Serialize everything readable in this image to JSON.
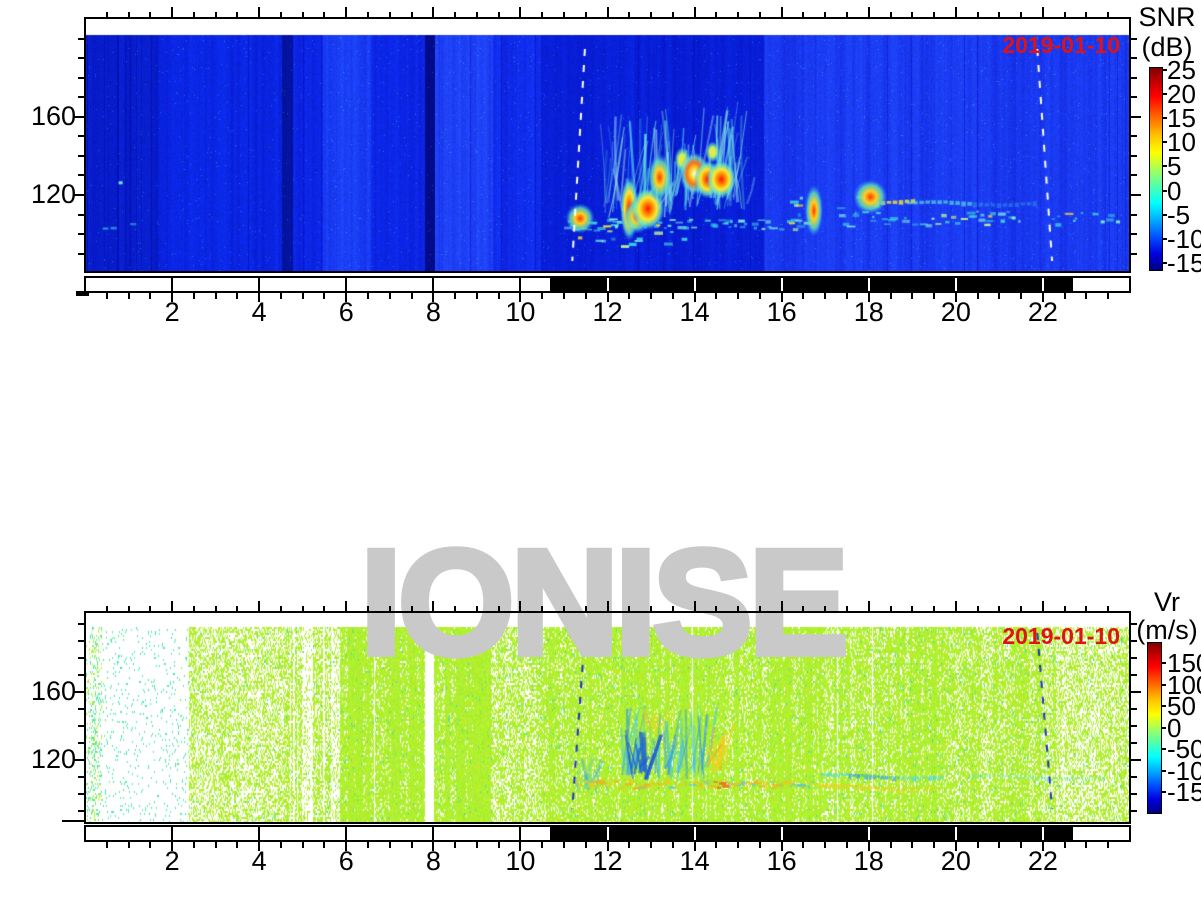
{
  "watermark": "IONISE",
  "panels": [
    {
      "id": "snr",
      "date_label": "2019-01-10",
      "colorbar": {
        "title": "SNR",
        "units": "(dB)",
        "tick_labels": [
          "25",
          "20",
          "15",
          "10",
          "5",
          "0",
          "-5",
          "-10",
          "-15"
        ]
      },
      "y_tick_labels": [
        "160",
        "120"
      ],
      "x_tick_labels": [
        "2",
        "4",
        "6",
        "8",
        "10",
        "12",
        "14",
        "16",
        "18",
        "20",
        "22"
      ]
    },
    {
      "id": "vr",
      "date_label": "2019-01-10",
      "colorbar": {
        "title": "Vr",
        "units": "(m/s)",
        "tick_labels": [
          "150",
          "100",
          "50",
          "0",
          "-50",
          "-100",
          "-150"
        ]
      },
      "y_tick_labels": [
        "160",
        "120"
      ],
      "x_tick_labels": [
        "2",
        "4",
        "6",
        "8",
        "10",
        "12",
        "14",
        "16",
        "18",
        "20",
        "22"
      ]
    }
  ],
  "chart_data": [
    {
      "id": "snr",
      "type": "heatmap",
      "quantity": "signal-to-noise ratio",
      "date": "2019-01-10",
      "x_axis": {
        "range_hours": [
          0,
          24
        ],
        "major_tick_hours": [
          2,
          4,
          6,
          8,
          10,
          12,
          14,
          16,
          18,
          20,
          22
        ],
        "minor_step_hours": 0.5
      },
      "y_axis": {
        "labeled_ticks_km": [
          160,
          120
        ],
        "minor_step_km": 10,
        "range_km": [
          82,
          210
        ],
        "data_top_km": 200
      },
      "colorbar": {
        "title": "SNR",
        "units": "dB",
        "tick_values": [
          25,
          20,
          15,
          10,
          5,
          0,
          -5,
          -10,
          -15
        ],
        "colormap": "jet"
      },
      "night_shading_hours": [
        10.68,
        22.69
      ],
      "terminator_lines": [
        {
          "hour_top": 11.48,
          "hour_bottom": 11.19,
          "style": "dashed",
          "color": "#ffffff"
        },
        {
          "hour_top": 21.89,
          "hour_bottom": 22.23,
          "style": "dashed",
          "color": "#ffffff"
        }
      ],
      "background_columns": [
        {
          "hours": [
            0,
            1.65
          ],
          "rgb": [
            8,
            30,
            205
          ],
          "streaks": true
        },
        {
          "hours": [
            1.65,
            4.5
          ],
          "rgb": [
            10,
            36,
            225
          ]
        },
        {
          "hours": [
            4.5,
            4.75
          ],
          "rgb": [
            4,
            20,
            160
          ]
        },
        {
          "hours": [
            4.75,
            5.45
          ],
          "rgb": [
            12,
            38,
            230
          ]
        },
        {
          "hours": [
            5.45,
            6.55
          ],
          "rgb": [
            25,
            60,
            245
          ]
        },
        {
          "hours": [
            6.55,
            7.8
          ],
          "rgb": [
            12,
            38,
            230
          ]
        },
        {
          "hours": [
            7.8,
            8.03
          ],
          "rgb": [
            3,
            10,
            135
          ]
        },
        {
          "hours": [
            8.03,
            9.35
          ],
          "rgb": [
            30,
            64,
            248
          ]
        },
        {
          "hours": [
            9.35,
            10.45
          ],
          "rgb": [
            16,
            44,
            235
          ]
        },
        {
          "hours": [
            10.45,
            15.6
          ],
          "rgb": [
            8,
            30,
            215
          ]
        },
        {
          "hours": [
            15.6,
            24.01
          ],
          "rgb": [
            26,
            58,
            242
          ]
        }
      ],
      "echoes": {
        "e_layer_dashes": [
          {
            "hours": [
              11.0,
              16.6
            ],
            "alt_km": [
              103,
              108
            ],
            "density": 0.55
          },
          {
            "hours": [
              11.05,
              13.8
            ],
            "alt_km": [
              94,
              103
            ],
            "density": 0.2
          },
          {
            "hours": [
              16.2,
              18.6
            ],
            "alt_km": [
              104,
              122
            ],
            "density": 0.5
          },
          {
            "hours": [
              18.6,
              21.0
            ],
            "alt_km": [
              105,
              112
            ],
            "density": 0.3
          },
          {
            "hours": [
              21.0,
              24.0
            ],
            "alt_km": [
              105,
              112
            ],
            "density": 0.2
          },
          {
            "hours": [
              0.25,
              1.7
            ],
            "alt_km": [
              100,
              108
            ],
            "density": 0.16
          }
        ],
        "plumes": [
          {
            "hours": [
              11.85,
              13.5
            ],
            "alt_km": [
              108,
              162
            ]
          },
          {
            "hours": [
              13.4,
              15.25
            ],
            "alt_km": [
              112,
              168
            ]
          }
        ],
        "bright_blobs": [
          {
            "hour": 11.37,
            "alt_km": 108,
            "w_h": 0.24,
            "h_km": 7,
            "kind": "hot"
          },
          {
            "hour": 12.5,
            "alt_km": 113,
            "w_h": 0.15,
            "h_km": 15,
            "kind": "hot2"
          },
          {
            "hour": 12.68,
            "alt_km": 109,
            "w_h": 0.22,
            "h_km": 8,
            "kind": "hot"
          },
          {
            "hour": 12.93,
            "alt_km": 113,
            "w_h": 0.28,
            "h_km": 10,
            "kind": "hot2"
          },
          {
            "hour": 13.2,
            "alt_km": 129,
            "w_h": 0.2,
            "h_km": 11,
            "kind": "hot"
          },
          {
            "hour": 13.72,
            "alt_km": 138,
            "w_h": 0.13,
            "h_km": 6,
            "kind": "warm"
          },
          {
            "hour": 14.0,
            "alt_km": 131,
            "w_h": 0.25,
            "h_km": 10,
            "kind": "hotw"
          },
          {
            "hour": 14.3,
            "alt_km": 128,
            "w_h": 0.22,
            "h_km": 9,
            "kind": "hot2"
          },
          {
            "hour": 14.62,
            "alt_km": 128,
            "w_h": 0.25,
            "h_km": 9,
            "kind": "hot2"
          },
          {
            "hour": 14.42,
            "alt_km": 142,
            "w_h": 0.12,
            "h_km": 5,
            "kind": "warm"
          },
          {
            "hour": 16.75,
            "alt_km": 112,
            "w_h": 0.15,
            "h_km": 12,
            "kind": "hot"
          },
          {
            "hour": 18.05,
            "alt_km": 119,
            "w_h": 0.28,
            "h_km": 8,
            "kind": "hot"
          }
        ],
        "streaks": [
          {
            "hours": [
              18.15,
              19.0
            ],
            "alt_km": [
              115,
              118
            ],
            "color": "#e8e040",
            "alpha": 0.85
          },
          {
            "hours": [
              18.9,
              20.4
            ],
            "alt_km": [
              114,
              117
            ],
            "color": "#58d8e0",
            "alpha": 0.7
          },
          {
            "hours": [
              20.4,
              21.9
            ],
            "alt_km": [
              114,
              117
            ],
            "color": "#40c0d8",
            "alpha": 0.35
          }
        ],
        "dots": [
          {
            "hour": 21.3,
            "alt_km": 109
          },
          {
            "hour": 23.35,
            "alt_km": 107
          },
          {
            "hour": 23.7,
            "alt_km": 107
          },
          {
            "hour": 0.75,
            "alt_km": 127
          }
        ]
      }
    },
    {
      "id": "vr",
      "type": "heatmap",
      "quantity": "Doppler radial velocity",
      "date": "2019-01-10",
      "x_axis": {
        "range_hours": [
          0,
          24
        ],
        "major_tick_hours": [
          2,
          4,
          6,
          8,
          10,
          12,
          14,
          16,
          18,
          20,
          22
        ],
        "minor_step_hours": 0.5
      },
      "y_axis": {
        "labeled_ticks_km": [
          160,
          120
        ],
        "minor_step_km": 10,
        "range_km": [
          83,
          206
        ],
        "data_top_km": 200
      },
      "colorbar": {
        "title": "Vr",
        "units": "m/s",
        "tick_values": [
          150,
          100,
          50,
          0,
          -50,
          -100,
          -150
        ],
        "colormap": "jet"
      },
      "night_shading_hours": [
        10.68,
        22.69
      ],
      "terminator_lines": [
        {
          "hour_top": 11.48,
          "hour_bottom": 11.19,
          "style": "dashed",
          "color": "#2030c0"
        },
        {
          "hour_top": 21.89,
          "hour_bottom": 22.23,
          "style": "dashed",
          "color": "#2030c0"
        }
      ],
      "speckle_columns": [
        {
          "hours": [
            0,
            0.35
          ],
          "density": 0.25,
          "palette": "mixed"
        },
        {
          "hours": [
            0.35,
            2.35
          ],
          "density": 0.06,
          "palette": "cyan"
        },
        {
          "hours": [
            2.35,
            4.55
          ],
          "density": 0.5,
          "palette": "green"
        },
        {
          "hours": [
            4.55,
            5.7
          ],
          "density": 0.68,
          "palette": "green",
          "striped": true
        },
        {
          "hours": [
            5.7,
            7.8
          ],
          "density": 0.97,
          "palette": "green"
        },
        {
          "hours": [
            7.8,
            8.0
          ],
          "density": 0.0,
          "palette": "green"
        },
        {
          "hours": [
            8.0,
            9.3
          ],
          "density": 0.99,
          "palette": "green"
        },
        {
          "hours": [
            9.3,
            10.35
          ],
          "density": 0.6,
          "palette": "green"
        },
        {
          "hours": [
            10.35,
            16.9
          ],
          "density": 0.88,
          "palette": "green"
        },
        {
          "hours": [
            16.9,
            19.8
          ],
          "density": 0.82,
          "palette": "green"
        },
        {
          "hours": [
            19.8,
            22.3
          ],
          "density": 0.72,
          "palette": "green"
        },
        {
          "hours": [
            22.3,
            24.01
          ],
          "density": 0.55,
          "palette": "green"
        }
      ],
      "features": {
        "negative_patches": [
          {
            "hours": [
              12.3,
              14.3
            ],
            "alt_km": [
              108,
              152
            ],
            "strength": 1.0
          },
          {
            "hours": [
              11.15,
              11.75
            ],
            "alt_km": [
              100,
              122
            ],
            "strength": 0.5
          }
        ],
        "deep_negative": [
          {
            "hours": [
              12.5,
              12.9
            ],
            "alt_km": [
              108,
              140
            ]
          }
        ],
        "positive_patches": [
          {
            "hours": [
              14.2,
              14.8
            ],
            "alt_km": [
              112,
              142
            ]
          },
          {
            "hours": [
              12.9,
              13.2
            ],
            "alt_km": [
              136,
              150
            ]
          }
        ],
        "layer": {
          "hours": [
            11.2,
            16.7
          ],
          "alt_km": [
            104,
            109
          ],
          "orange_hour": 14.55
        },
        "band_cyan": {
          "hours": [
            16.9,
            19.7
          ],
          "alt_km": [
            107,
            113
          ]
        },
        "band_yellow": {
          "hours": [
            16.9,
            19.6
          ],
          "alt_km": [
            101,
            106
          ]
        },
        "faint_band": {
          "hours": [
            20.3,
            23.4
          ],
          "alt_km": [
            107,
            112
          ]
        }
      }
    }
  ]
}
